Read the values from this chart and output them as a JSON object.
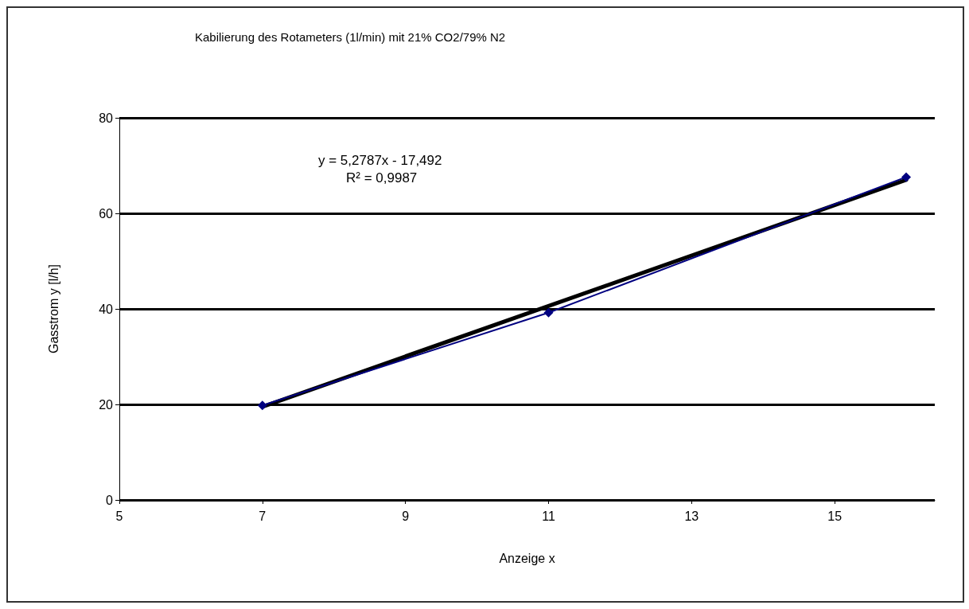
{
  "chart_data": {
    "type": "line",
    "title": "Kabilierung des Rotameters (1l/min) mit 21% CO2/79% N2",
    "xlabel": "Anzeige x",
    "ylabel": "Gasstrom y [l/h]",
    "x": [
      7,
      11,
      16
    ],
    "series": [
      {
        "color": "#000080",
        "values": [
          19.8,
          39.2,
          67.6
        ],
        "marker": "diamond"
      },
      {
        "type": "line",
        "color": "#000000",
        "x": [
          7,
          16
        ],
        "values": [
          19.5,
          67.0
        ],
        "marker": "none"
      }
    ],
    "annotations": [
      "y = 5,2787x - 17,492",
      "R² = 0,9987"
    ],
    "xlim": [
      5,
      16.4
    ],
    "xticks": [
      5,
      7,
      9,
      11,
      13,
      15
    ],
    "ylim": [
      0,
      80
    ],
    "yticks": [
      0,
      20,
      40,
      60,
      80
    ],
    "grid": "y"
  }
}
